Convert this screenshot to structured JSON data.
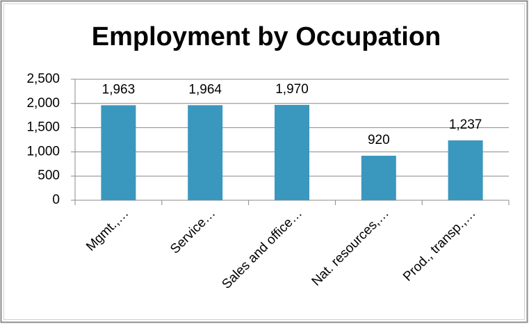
{
  "chart_data": {
    "type": "bar",
    "title": "Employment by Occupation",
    "categories": [
      "Mgmt.,…",
      "Service…",
      "Sales and office…",
      "Nat. resources,…",
      "Prod., transp.,…"
    ],
    "values": [
      1963,
      1964,
      1970,
      920,
      1237
    ],
    "value_labels": [
      "1,963",
      "1,964",
      "1,970",
      "920",
      "1,237"
    ],
    "color": "#3a97be",
    "ylim": [
      0,
      2500
    ],
    "yticks": [
      0,
      500,
      {
        "value": 1000,
        "label": "1,000"
      },
      {
        "value": 1500,
        "label": "1,500"
      },
      {
        "value": 2000,
        "label": "2,000"
      },
      {
        "value": 2500,
        "label": "2,500"
      }
    ],
    "grid": true
  }
}
